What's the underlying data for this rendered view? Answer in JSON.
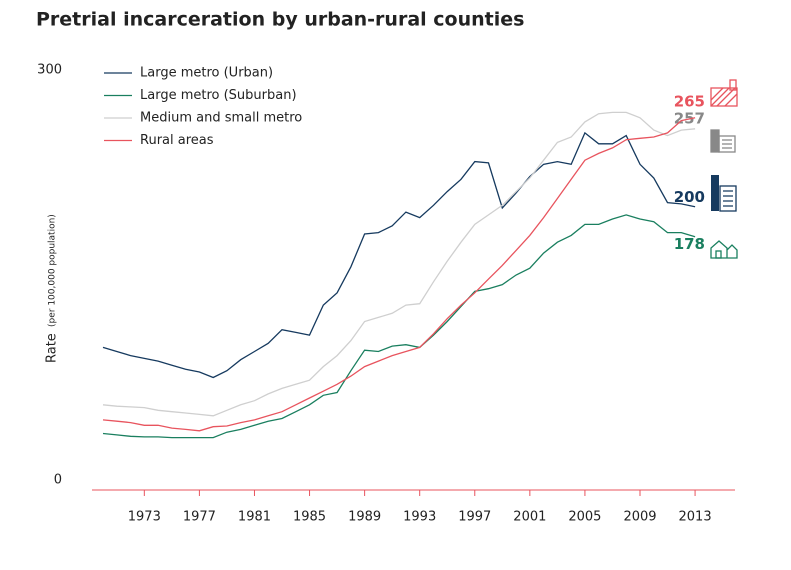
{
  "chart_data": {
    "type": "line",
    "title": "Pretrial incarceration by urban-rural counties",
    "y_label": "Rate",
    "y_label_sub": "(per 100,000 population)",
    "x": [
      1970,
      1971,
      1972,
      1973,
      1974,
      1975,
      1976,
      1977,
      1978,
      1979,
      1980,
      1981,
      1982,
      1983,
      1984,
      1985,
      1986,
      1987,
      1988,
      1989,
      1990,
      1991,
      1992,
      1993,
      1994,
      1995,
      1996,
      1997,
      1998,
      1999,
      2000,
      2001,
      2002,
      2003,
      2004,
      2005,
      2006,
      2007,
      2008,
      2009,
      2010,
      2011,
      2012,
      2013
    ],
    "xlim": [
      1969.2,
      2015.9
    ],
    "xticks": [
      1973,
      1977,
      1981,
      1985,
      1989,
      1993,
      1997,
      2001,
      2005,
      2009,
      2013
    ],
    "ylim": [
      0,
      300
    ],
    "yticks": [
      0,
      300
    ],
    "series": [
      {
        "name": "Large metro (Urban)",
        "color": "#163a5f",
        "values": [
          97,
          94,
          91,
          89,
          87,
          84,
          81,
          79,
          75,
          80,
          88,
          94,
          100,
          110,
          108,
          106,
          128,
          137,
          156,
          180,
          181,
          186,
          196,
          192,
          201,
          211,
          220,
          233,
          232,
          199,
          210,
          222,
          231,
          233,
          231,
          254,
          246,
          246,
          252,
          231,
          221,
          203,
          202,
          200
        ]
      },
      {
        "name": "Large metro (Suburban)",
        "color": "#1a7f5f",
        "values": [
          34,
          33,
          32,
          31.5,
          31.5,
          31,
          31,
          31,
          31,
          35,
          37,
          40,
          43,
          45,
          50,
          55,
          62,
          64,
          80,
          95,
          94,
          98,
          99,
          97,
          106,
          116,
          127,
          138,
          140,
          143,
          150,
          155,
          166,
          174,
          179,
          187,
          187,
          191,
          194,
          191,
          189,
          181,
          181,
          178
        ]
      },
      {
        "name": "Medium and small metro",
        "color": "#cfcfcf",
        "values": [
          55,
          54,
          53.5,
          53,
          51,
          50,
          49,
          48,
          47,
          51,
          55,
          58,
          63,
          67,
          70,
          73,
          83,
          91,
          102,
          116,
          119,
          122,
          128,
          129,
          145,
          160,
          174,
          187,
          194,
          201,
          211,
          221,
          234,
          247,
          251,
          262,
          268,
          269,
          269,
          265,
          256,
          252,
          256,
          257
        ]
      },
      {
        "name": "Rural areas",
        "color": "#e8545e",
        "values": [
          44,
          43,
          42,
          40,
          40,
          38,
          37,
          36,
          39,
          39.5,
          42,
          44,
          47,
          50,
          55,
          60,
          65,
          70,
          76,
          83,
          87,
          91,
          94,
          97,
          107,
          118,
          128,
          137,
          147,
          157,
          168,
          179,
          192,
          206,
          220,
          234,
          239,
          243,
          249,
          250,
          251,
          254,
          263,
          265
        ]
      }
    ]
  }
}
